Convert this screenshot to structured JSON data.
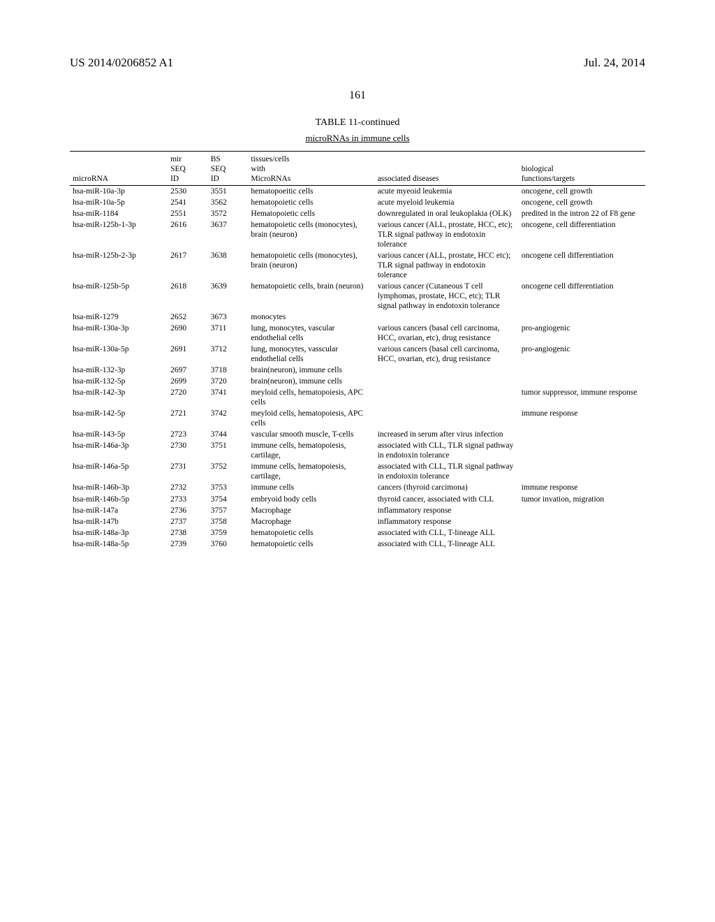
{
  "header": {
    "left": "US 2014/0206852 A1",
    "right": "Jul. 24, 2014"
  },
  "page_number": "161",
  "table": {
    "title": "TABLE 11-continued",
    "subtitle": "microRNAs in immune cells",
    "columns": {
      "c1": "microRNA",
      "c2a": "mir",
      "c2b": "SEQ",
      "c2c": "ID",
      "c3a": "BS",
      "c3b": "SEQ",
      "c3c": "ID",
      "c4a": "tissues/cells",
      "c4b": "with",
      "c4c": "MicroRNAs",
      "c5": "associated diseases",
      "c6a": "biological",
      "c6b": "functions/targets"
    },
    "rows": [
      {
        "m": "hsa-miR-10a-3p",
        "mir": "2530",
        "bs": "3551",
        "t": "hematopoeitic cells",
        "d": "acute myeoid leukemia",
        "f": "oncogene, cell growth"
      },
      {
        "m": "hsa-miR-10a-5p",
        "mir": "2541",
        "bs": "3562",
        "t": "hematopoietic cells",
        "d": "acute myeloid leukemia",
        "f": "oncogene, cell growth"
      },
      {
        "m": "hsa-miR-1184",
        "mir": "2551",
        "bs": "3572",
        "t": "Hematopoietic cells",
        "d": "downregulated in oral leukoplakia (OLK)",
        "f": "predited in the intron 22 of F8 gene"
      },
      {
        "m": "hsa-miR-125b-1-3p",
        "mir": "2616",
        "bs": "3637",
        "t": "hematopoietic cells (monocytes), brain (neuron)",
        "d": "various cancer (ALL, prostate, HCC, etc); TLR signal pathway in endotoxin tolerance",
        "f": "oncogene, cell differentiation"
      },
      {
        "m": "hsa-miR-125b-2-3p",
        "mir": "2617",
        "bs": "3638",
        "t": "hematopoietic cells (monocytes), brain (neuron)",
        "d": "various cancer (ALL, prostate, HCC etc); TLR signal pathway in endotoxin tolerance",
        "f": "oncogene cell differentiation"
      },
      {
        "m": "hsa-miR-125b-5p",
        "mir": "2618",
        "bs": "3639",
        "t": "hematopoietic cells, brain (neuron)",
        "d": "various cancer (Cutaneous T cell lymphomas, prostate, HCC, etc); TLR signal pathway in endotoxin tolerance",
        "f": "oncogene cell differentiation"
      },
      {
        "m": "hsa-miR-1279",
        "mir": "2652",
        "bs": "3673",
        "t": "monocytes",
        "d": "",
        "f": ""
      },
      {
        "m": "hsa-miR-130a-3p",
        "mir": "2690",
        "bs": "3711",
        "t": "lung, monocytes, vascular endothelial cells",
        "d": "various cancers (basal cell carcinoma, HCC, ovarian, etc), drug resistance",
        "f": "pro-angiogenic"
      },
      {
        "m": "hsa-miR-130a-5p",
        "mir": "2691",
        "bs": "3712",
        "t": "lung, monocytes, vasscular endothelial cells",
        "d": "various cancers (basal cell carcinoma, HCC, ovarian, etc), drug resistance",
        "f": "pro-angiogenic"
      },
      {
        "m": "hsa-miR-132-3p",
        "mir": "2697",
        "bs": "3718",
        "t": "brain(neuron), immune cells",
        "d": "",
        "f": ""
      },
      {
        "m": "hsa-miR-132-5p",
        "mir": "2699",
        "bs": "3720",
        "t": "brain(neuron), immune cells",
        "d": "",
        "f": ""
      },
      {
        "m": "hsa-miR-142-3p",
        "mir": "2720",
        "bs": "3741",
        "t": "meyloid cells, hematopoiesis, APC cells",
        "d": "",
        "f": "tumor suppressor, immune response"
      },
      {
        "m": "hsa-miR-142-5p",
        "mir": "2721",
        "bs": "3742",
        "t": "meyloid cells, hematopoiesis, APC cells",
        "d": "",
        "f": "immune response"
      },
      {
        "m": "hsa-miR-143-5p",
        "mir": "2723",
        "bs": "3744",
        "t": "vascular smooth muscle, T-cells",
        "d": "increased in serum after virus infection",
        "f": ""
      },
      {
        "m": "hsa-miR-146a-3p",
        "mir": "2730",
        "bs": "3751",
        "t": "immune cells, hematopoiesis, cartilage,",
        "d": "associated with CLL, TLR signal pathway in endotoxin tolerance",
        "f": ""
      },
      {
        "m": "hsa-miR-146a-5p",
        "mir": "2731",
        "bs": "3752",
        "t": "immune cells, hematopoiesis, cartilage,",
        "d": "associated with CLL, TLR signal pathway in endotoxin tolerance",
        "f": ""
      },
      {
        "m": "hsa-miR-146b-3p",
        "mir": "2732",
        "bs": "3753",
        "t": "immune cells",
        "d": "cancers (thyroid carcimona)",
        "f": "immune response"
      },
      {
        "m": "hsa-miR-146b-5p",
        "mir": "2733",
        "bs": "3754",
        "t": "embryoid body cells",
        "d": "thyroid cancer, associated with CLL",
        "f": "tumor invation, migration"
      },
      {
        "m": "hsa-miR-147a",
        "mir": "2736",
        "bs": "3757",
        "t": "Macrophage",
        "d": "inflammatory response",
        "f": ""
      },
      {
        "m": "hsa-miR-147b",
        "mir": "2737",
        "bs": "3758",
        "t": "Macrophage",
        "d": "inflammatory response",
        "f": ""
      },
      {
        "m": "hsa-miR-148a-3p",
        "mir": "2738",
        "bs": "3759",
        "t": "hematopoietic cells",
        "d": "associated with CLL, T-lineage ALL",
        "f": ""
      },
      {
        "m": "hsa-miR-148a-5p",
        "mir": "2739",
        "bs": "3760",
        "t": "hematopoietic cells",
        "d": "associated with CLL, T-lineage ALL",
        "f": ""
      }
    ]
  }
}
